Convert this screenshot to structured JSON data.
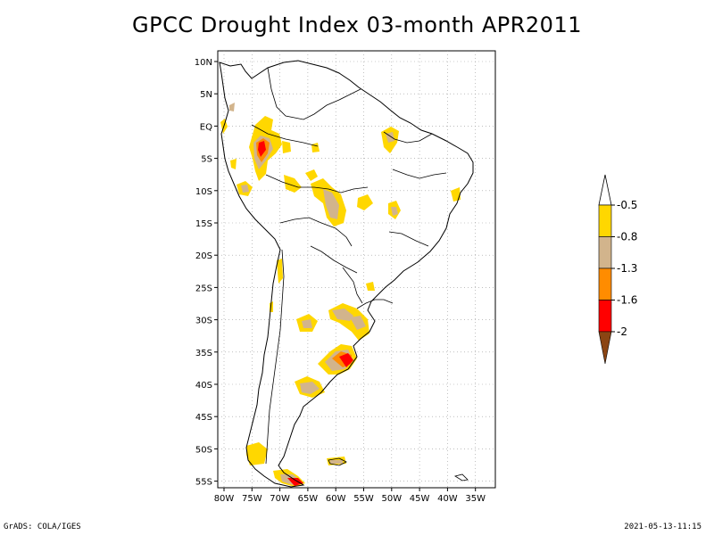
{
  "title": "GPCC Drought Index 03-month APR2011",
  "map": {
    "region": "South America",
    "lon_range": [
      -80,
      -30
    ],
    "lat_range": [
      -56,
      12
    ],
    "lat_ticks": [
      "10N",
      "5N",
      "EQ",
      "5S",
      "10S",
      "15S",
      "20S",
      "25S",
      "30S",
      "35S",
      "40S",
      "45S",
      "50S",
      "55S"
    ],
    "lon_ticks": [
      "80W",
      "75W",
      "70W",
      "65W",
      "60W",
      "55W",
      "50W",
      "45W",
      "40W",
      "35W"
    ],
    "grid": true
  },
  "legend": {
    "items": [
      {
        "label": "-0.5",
        "color": "#ffd700"
      },
      {
        "label": "-0.8",
        "color": "#d2b48c"
      },
      {
        "label": "-1.3",
        "color": "#ff8c00"
      },
      {
        "label": "-1.6",
        "color": "#ff0000"
      },
      {
        "label": "-2",
        "color": "#8b4513"
      }
    ],
    "top_color": "#ffffff"
  },
  "footer": {
    "left": "GrADS: COLA/IGES",
    "right": "2021-05-13-11:15"
  }
}
